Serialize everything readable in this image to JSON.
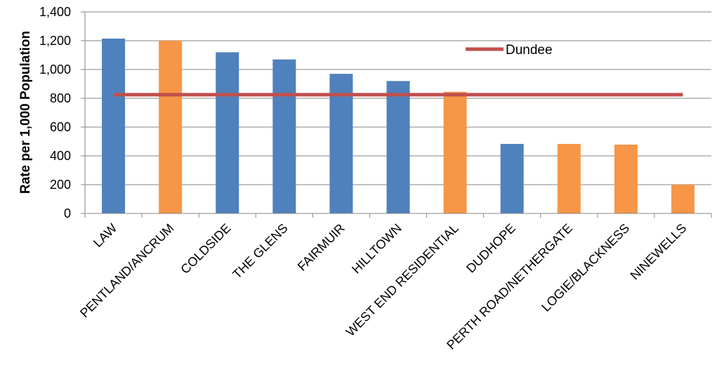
{
  "chart_data": {
    "type": "bar",
    "ylabel": "Rate per 1,000 Population",
    "ylim": [
      0,
      1400
    ],
    "yticks": [
      0,
      200,
      400,
      600,
      800,
      1000,
      1200,
      1400
    ],
    "ytick_labels": [
      "0",
      "200",
      "400",
      "600",
      "800",
      "1,000",
      "1,200",
      "1,400"
    ],
    "grid": true,
    "categories": [
      "LAW",
      "PENTLAND/ANCRUM",
      "COLDSIDE",
      "THE GLENS",
      "FAIRMUIR",
      "HILLTOWN",
      "WEST END RESIDENTIAL",
      "DUDHOPE",
      "PERTH ROAD/NETHERGATE",
      "LOGIE/BLACKNESS",
      "NINEWELLS"
    ],
    "values": [
      1215,
      1200,
      1120,
      1070,
      970,
      920,
      845,
      483,
      483,
      478,
      200
    ],
    "bar_colors": [
      "#4f81bd",
      "#f79646",
      "#4f81bd",
      "#4f81bd",
      "#4f81bd",
      "#4f81bd",
      "#f79646",
      "#4f81bd",
      "#f79646",
      "#f79646",
      "#f79646"
    ],
    "reference_line": {
      "name": "Dundee",
      "value": 825,
      "color": "#c0504d"
    },
    "legend_position": "top-right"
  }
}
